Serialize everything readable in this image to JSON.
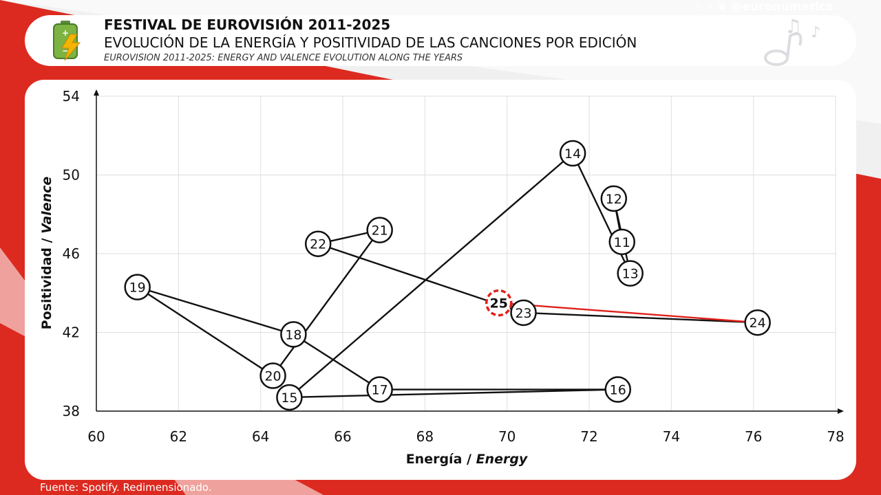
{
  "header": {
    "title_es": "FESTIVAL DE EUROVISIÓN 2011-2025",
    "subtitle_es": "EVOLUCIÓN DE LA ENERGÍA Y POSITIVIDAD DE LAS CANCIONES POR EDICIÓN",
    "subtitle_en": "EUROVISION 2011-2025: ENERGY AND VALENCE EVOLUTION ALONG THE YEARS"
  },
  "social": {
    "handle": "@euronumerics",
    "icons": [
      "instagram-icon",
      "bluesky-icon",
      "facebook-icon"
    ]
  },
  "footer": {
    "source": "Fuente: Spotify. Redimensionado."
  },
  "colors": {
    "background_red": "#dc2a20",
    "highlight": "#e0201a",
    "line": "#111111"
  },
  "chart_data": {
    "type": "scatter",
    "connected": true,
    "title": "FESTIVAL DE EUROVISIÓN 2011-2025",
    "xlabel_prefix": "Energía / ",
    "xlabel_italic": "Energy",
    "ylabel_prefix": "Positividad / ",
    "ylabel_italic": "Valence",
    "xlim": [
      60,
      78
    ],
    "ylim": [
      38,
      54
    ],
    "x_ticks": [
      60,
      62,
      64,
      66,
      68,
      70,
      72,
      74,
      76,
      78
    ],
    "y_ticks": [
      38,
      42,
      46,
      50,
      54
    ],
    "grid": true,
    "highlight_label": "25",
    "points": [
      {
        "label": "11",
        "x": 72.8,
        "y": 46.6
      },
      {
        "label": "12",
        "x": 72.6,
        "y": 48.8
      },
      {
        "label": "13",
        "x": 73.0,
        "y": 45.0
      },
      {
        "label": "14",
        "x": 71.6,
        "y": 51.1
      },
      {
        "label": "15",
        "x": 64.7,
        "y": 38.7
      },
      {
        "label": "16",
        "x": 72.7,
        "y": 39.1
      },
      {
        "label": "17",
        "x": 66.9,
        "y": 39.1
      },
      {
        "label": "18",
        "x": 64.8,
        "y": 41.9
      },
      {
        "label": "19",
        "x": 61.0,
        "y": 44.3
      },
      {
        "label": "20",
        "x": 64.3,
        "y": 39.8
      },
      {
        "label": "21",
        "x": 66.9,
        "y": 47.2
      },
      {
        "label": "22",
        "x": 65.4,
        "y": 46.5
      },
      {
        "label": "23",
        "x": 70.4,
        "y": 43.0
      },
      {
        "label": "24",
        "x": 76.1,
        "y": 42.5
      },
      {
        "label": "25",
        "x": 69.8,
        "y": 43.5
      }
    ]
  }
}
